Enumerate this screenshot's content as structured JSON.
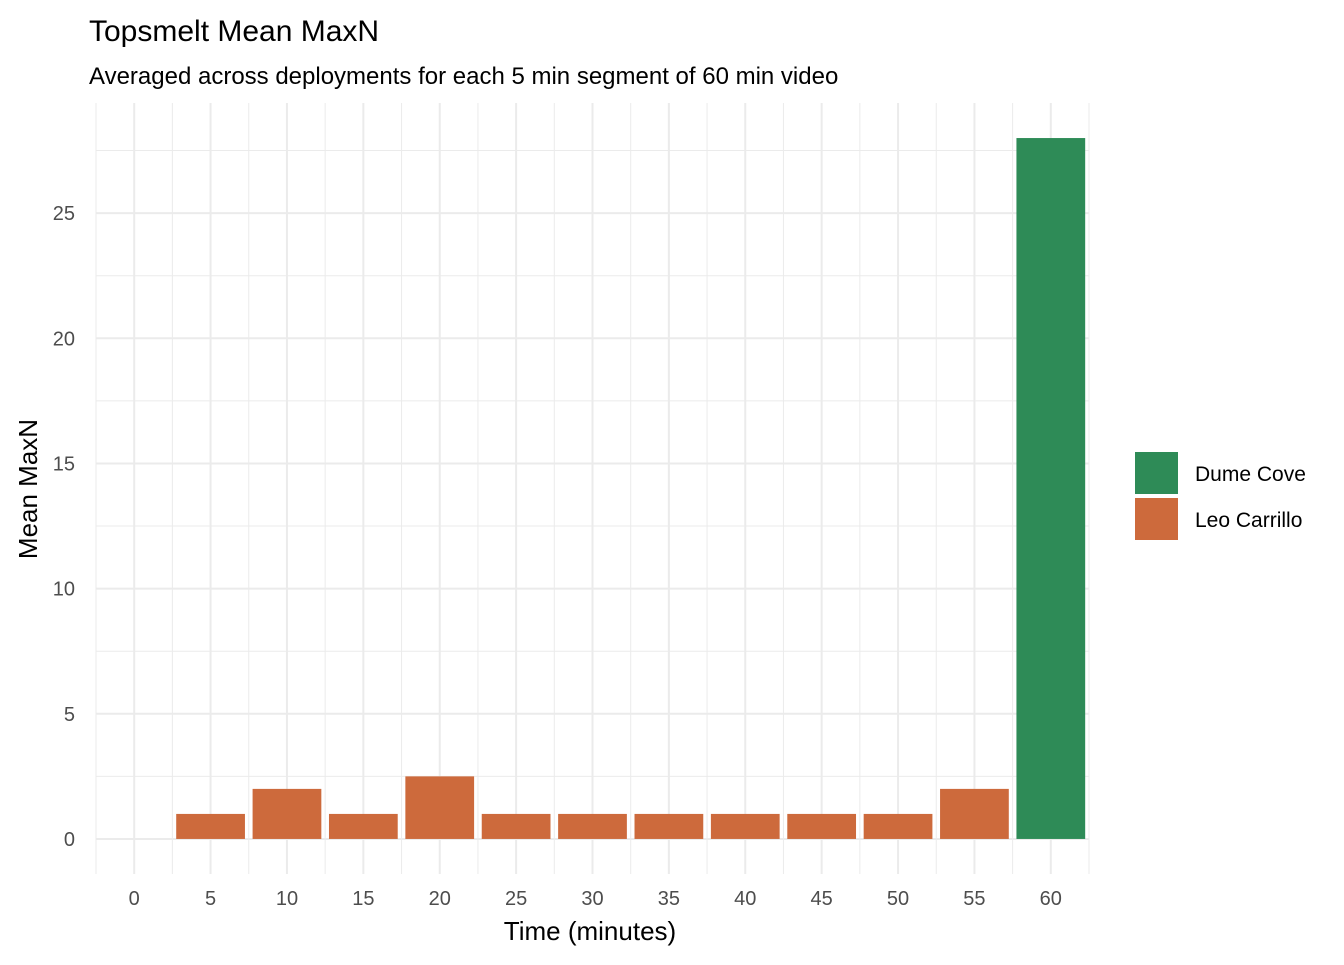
{
  "chart_data": {
    "type": "bar",
    "title": "Topsmelt Mean MaxN",
    "subtitle": "Averaged across deployments for each 5 min segment of 60 min video",
    "xlabel": "Time (minutes)",
    "ylabel": "Mean MaxN",
    "xlim": [
      -2.5,
      62.5
    ],
    "ylim": [
      -1.4,
      29.4
    ],
    "x_ticks": [
      0,
      5,
      10,
      15,
      20,
      25,
      30,
      35,
      40,
      45,
      50,
      55,
      60
    ],
    "y_ticks": [
      0,
      5,
      10,
      15,
      20,
      25
    ],
    "grid": true,
    "legend_position": "right",
    "series": [
      {
        "name": "Dume Cove",
        "color": "#2E8B57",
        "points": [
          {
            "x": 60,
            "y": 28
          }
        ]
      },
      {
        "name": "Leo Carrillo",
        "color": "#CD6A3C",
        "points": [
          {
            "x": 5,
            "y": 1
          },
          {
            "x": 10,
            "y": 2
          },
          {
            "x": 15,
            "y": 1
          },
          {
            "x": 20,
            "y": 2.5
          },
          {
            "x": 25,
            "y": 1
          },
          {
            "x": 30,
            "y": 1
          },
          {
            "x": 35,
            "y": 1
          },
          {
            "x": 40,
            "y": 1
          },
          {
            "x": 45,
            "y": 1
          },
          {
            "x": 50,
            "y": 1
          },
          {
            "x": 55,
            "y": 2
          }
        ]
      }
    ]
  }
}
